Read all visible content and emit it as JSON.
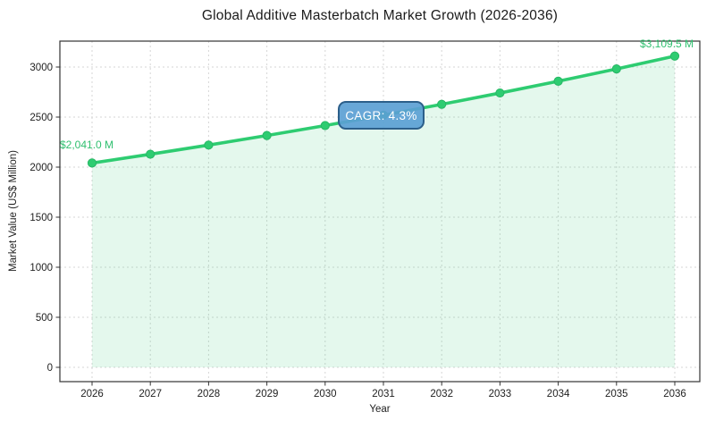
{
  "page": {
    "title": "Global Additive Masterbatch Market Growth (2026-2036)"
  },
  "chart_data": {
    "type": "line",
    "title": "Global Additive Masterbatch Market Growth (2026-2036)",
    "xlabel": "Year",
    "ylabel": "Market Value (US$ Million)",
    "x": [
      2026,
      2027,
      2028,
      2029,
      2030,
      2031,
      2032,
      2033,
      2034,
      2035,
      2036
    ],
    "series": [
      {
        "name": "Market Value (US$ Million)",
        "values": [
          2041.0,
          2128.8,
          2220.3,
          2315.8,
          2415.4,
          2519.3,
          2627.6,
          2740.6,
          2858.4,
          2981.3,
          3109.5
        ]
      }
    ],
    "yticks": [
      0,
      500,
      1000,
      1500,
      2000,
      2500,
      3000
    ],
    "ylim": [
      -145,
      3270
    ],
    "xlim": [
      2025.45,
      2036.43
    ],
    "grid": true,
    "legend": false,
    "area_fill_to_zero": true,
    "cagr_percent": 4.3,
    "annotations": [
      {
        "text": "$2,041.0 M",
        "x": 2026,
        "y": 2041.0,
        "position": "above-first-point"
      },
      {
        "text": "$3,109.5 M",
        "x": 2036,
        "y": 3109.5,
        "position": "above-last-point"
      },
      {
        "text": "CAGR: 4.3%",
        "x": 2031,
        "y": 2519.3,
        "position": "center-badge"
      }
    ],
    "colors": {
      "line": "#2ecc71",
      "marker": "#2ecc71",
      "marker_edge": "#27b765",
      "area": "rgba(46,204,113,0.13)",
      "annotation": "#2fbf6f",
      "badge_bg": "rgba(91,159,212,0.92)",
      "badge_border": "#2c5f8a",
      "badge_text": "#ffffff",
      "grid": "#d6d6d6",
      "spine": "#333333",
      "tick_text": "#222222",
      "title_text": "#1a1a1a"
    }
  }
}
